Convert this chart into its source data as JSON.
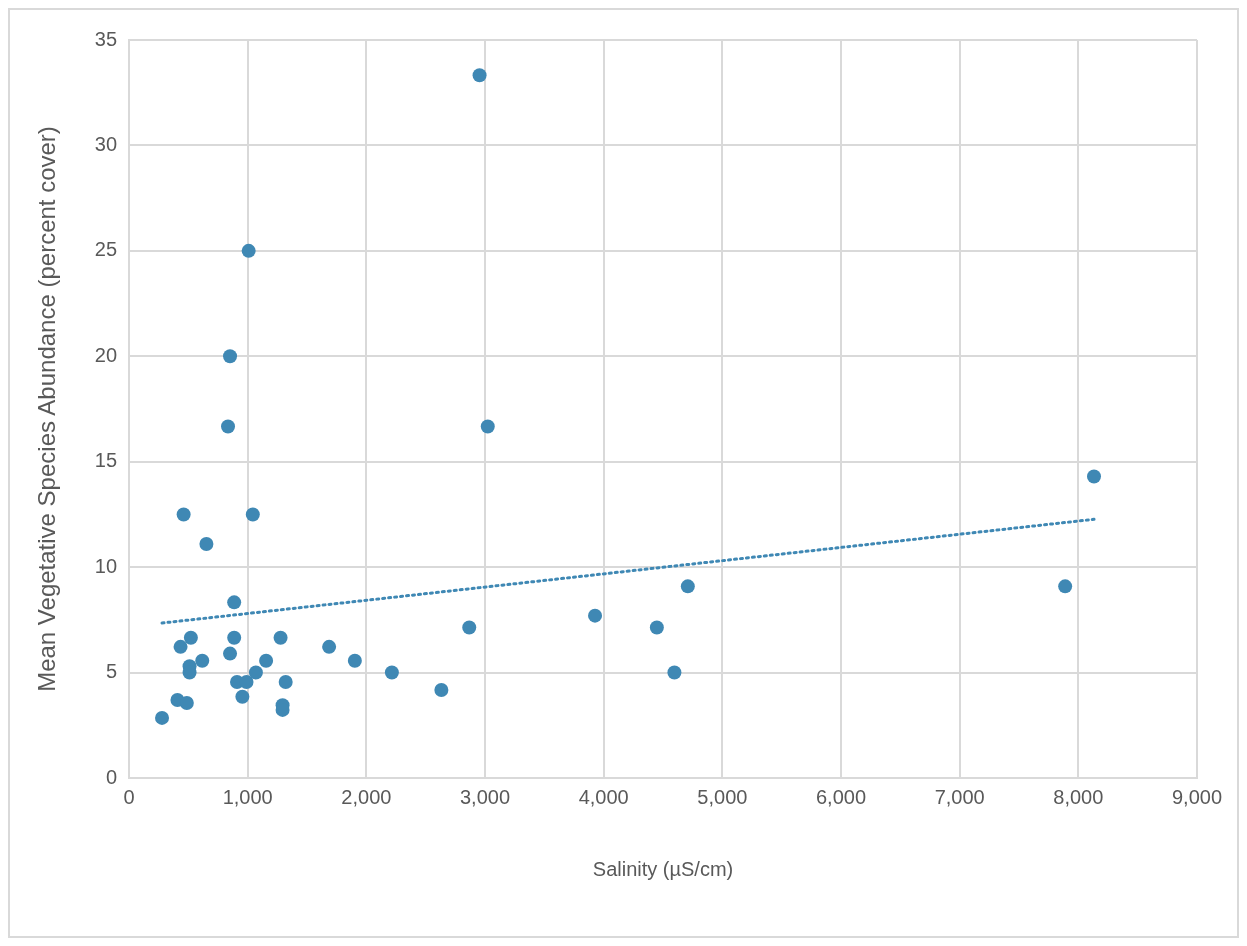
{
  "chart_data": {
    "type": "scatter",
    "xlabel": "Salinity (µS/cm)",
    "ylabel": "Mean Vegetative Species Abundance (percent cover)",
    "xlim": [
      0,
      9000
    ],
    "xticks": [
      0,
      {
        "value": 1000,
        "label": "1,000"
      },
      {
        "value": 2000,
        "label": "2,000"
      },
      {
        "value": 3000,
        "label": "3,000"
      },
      {
        "value": 4000,
        "label": "4,000"
      },
      {
        "value": 5000,
        "label": "5,000"
      },
      {
        "value": 6000,
        "label": "6,000"
      },
      {
        "value": 7000,
        "label": "7,000"
      },
      {
        "value": 8000,
        "label": "8,000"
      },
      {
        "value": 9000,
        "label": "9,000"
      }
    ],
    "ylim": [
      0,
      35
    ],
    "yticks": [
      0,
      5,
      10,
      15,
      20,
      25,
      30,
      35
    ],
    "grid": true,
    "series": [
      {
        "color": "#3f88b4",
        "marker": "circle",
        "x": [
          278,
          434,
          460,
          521,
          510,
          510,
          617,
          652,
          408,
          487,
          834,
          851,
          851,
          886,
          886,
          910,
          990,
          955,
          1008,
          1043,
          1069,
          1155,
          1277,
          1294,
          1294,
          1320,
          1686,
          1903,
          2215,
          2632,
          2867,
          2954,
          3023,
          3927,
          4448,
          4596,
          4709,
          7889,
          8132
        ],
        "values": [
          2.85,
          6.22,
          12.5,
          6.65,
          5.3,
          5.0,
          5.56,
          11.1,
          3.7,
          3.56,
          16.67,
          20.0,
          5.9,
          8.33,
          6.65,
          4.55,
          4.55,
          3.85,
          25.0,
          12.5,
          5.0,
          5.56,
          6.65,
          3.45,
          3.23,
          4.55,
          6.22,
          5.56,
          5.0,
          4.17,
          7.14,
          33.33,
          16.67,
          7.7,
          7.14,
          5.0,
          9.09,
          9.09,
          14.3
        ]
      },
      {
        "type": "line",
        "color": "#3f88b4",
        "marker": "none",
        "line_style": "dotted",
        "x": [
          278,
          8132
        ],
        "values": [
          7.35,
          12.27
        ]
      }
    ]
  }
}
